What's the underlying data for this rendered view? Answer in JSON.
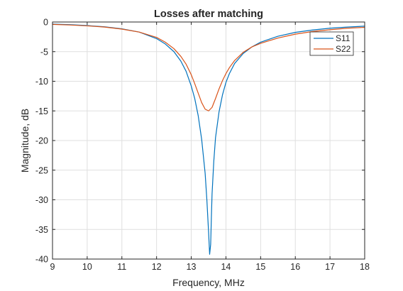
{
  "chart_data": {
    "type": "line",
    "title": "Losses after matching",
    "xlabel": "Frequency, MHz",
    "ylabel": "Magnitude, dB",
    "xlim": [
      9,
      18
    ],
    "ylim": [
      -40,
      0
    ],
    "xticks": [
      9,
      10,
      11,
      12,
      13,
      14,
      15,
      16,
      17,
      18
    ],
    "yticks": [
      0,
      -5,
      -10,
      -15,
      -20,
      -25,
      -30,
      -35,
      -40
    ],
    "xtick_labels": [
      "9",
      "10",
      "11",
      "12",
      "13",
      "14",
      "15",
      "16",
      "17",
      "18"
    ],
    "ytick_labels": [
      "0",
      "-5",
      "-10",
      "-15",
      "-20",
      "-25",
      "-30",
      "-35",
      "-40"
    ],
    "grid": true,
    "legend_position": "top-right",
    "series": [
      {
        "name": "S11",
        "color": "#0072BD",
        "x": [
          9.0,
          9.5,
          10.0,
          10.5,
          11.0,
          11.5,
          12.0,
          12.25,
          12.5,
          12.7,
          12.85,
          13.0,
          13.1,
          13.2,
          13.3,
          13.4,
          13.45,
          13.5,
          13.53,
          13.56,
          13.58,
          13.6,
          13.65,
          13.7,
          13.8,
          13.9,
          14.0,
          14.1,
          14.25,
          14.5,
          14.75,
          15.0,
          15.5,
          16.0,
          16.5,
          17.0,
          17.5,
          18.0
        ],
        "y": [
          -0.35,
          -0.45,
          -0.6,
          -0.8,
          -1.15,
          -1.7,
          -2.8,
          -3.7,
          -5.0,
          -6.6,
          -8.3,
          -10.8,
          -12.9,
          -15.8,
          -19.8,
          -25.5,
          -30.0,
          -35.5,
          -39.2,
          -37.5,
          -33.0,
          -29.0,
          -23.5,
          -19.5,
          -15.2,
          -12.3,
          -10.2,
          -8.7,
          -7.0,
          -5.3,
          -4.2,
          -3.4,
          -2.4,
          -1.75,
          -1.35,
          -1.05,
          -0.85,
          -0.7
        ]
      },
      {
        "name": "S22",
        "color": "#D95319",
        "x": [
          9.0,
          9.5,
          10.0,
          10.5,
          11.0,
          11.5,
          12.0,
          12.25,
          12.5,
          12.7,
          12.85,
          13.0,
          13.1,
          13.2,
          13.3,
          13.4,
          13.5,
          13.6,
          13.7,
          13.8,
          13.9,
          14.0,
          14.1,
          14.25,
          14.5,
          14.75,
          15.0,
          15.5,
          16.0,
          16.5,
          17.0,
          17.5,
          18.0
        ],
        "y": [
          -0.4,
          -0.5,
          -0.65,
          -0.85,
          -1.2,
          -1.7,
          -2.6,
          -3.4,
          -4.5,
          -5.8,
          -7.1,
          -8.9,
          -10.4,
          -12.0,
          -13.6,
          -14.7,
          -15.0,
          -14.4,
          -12.9,
          -11.3,
          -9.9,
          -8.7,
          -7.7,
          -6.5,
          -5.1,
          -4.2,
          -3.6,
          -2.7,
          -2.05,
          -1.6,
          -1.3,
          -1.05,
          -0.9
        ]
      }
    ]
  }
}
